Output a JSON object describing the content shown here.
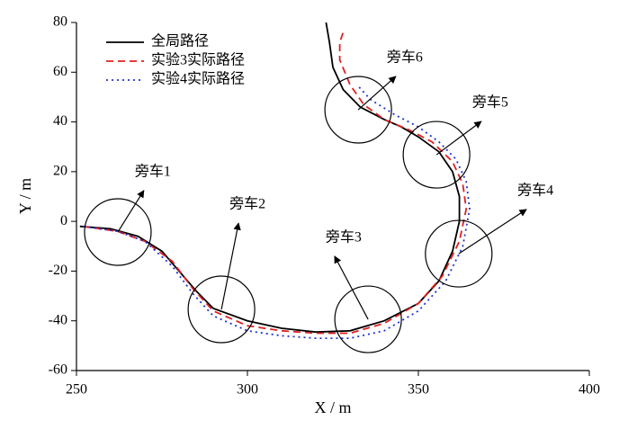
{
  "chart_data": {
    "type": "line",
    "xlabel": "X / m",
    "ylabel": "Y / m",
    "xlim": [
      250,
      400
    ],
    "ylim": [
      -60,
      80
    ],
    "xticks": [
      250,
      300,
      350,
      400
    ],
    "yticks": [
      -60,
      -40,
      -20,
      0,
      20,
      40,
      60,
      80
    ],
    "legend": "upper left",
    "series": [
      {
        "name": "全局路径",
        "color": "#000000",
        "dash": "solid",
        "x": [
          251,
          260,
          268,
          275,
          280,
          285,
          290,
          300,
          310,
          320,
          330,
          340,
          350,
          356,
          360,
          362,
          362,
          360,
          356,
          350,
          345,
          340,
          333,
          328,
          325,
          324,
          323
        ],
        "values": [
          -2,
          -3,
          -6,
          -12,
          -20,
          -28,
          -35,
          -40,
          -43,
          -44.5,
          -44,
          -40,
          -33,
          -24,
          -12,
          0,
          10,
          20,
          28,
          34,
          38,
          41,
          46,
          53,
          62,
          72,
          80
        ]
      },
      {
        "name": "实验3实际路径",
        "color": "#e02020",
        "dash": "dashed",
        "x": [
          252,
          262,
          270,
          278,
          284,
          290,
          300,
          310,
          320,
          330,
          340,
          350,
          357,
          362,
          364,
          363,
          360,
          354,
          347,
          340,
          334,
          330,
          327,
          327,
          328
        ],
        "values": [
          -2,
          -4,
          -8,
          -16,
          -27,
          -36,
          -42,
          -44,
          -45,
          -45,
          -41,
          -33,
          -22,
          -8,
          5,
          15,
          24,
          32,
          37,
          41,
          47,
          55,
          65,
          72,
          76
        ]
      },
      {
        "name": "实验4实际路径",
        "color": "#2030d0",
        "dash": "dotted",
        "x": [
          252,
          262,
          270,
          278,
          284,
          290,
          300,
          310,
          320,
          330,
          340,
          350,
          358,
          363,
          365,
          364,
          361,
          356,
          350,
          343,
          336,
          332
        ],
        "values": [
          -2,
          -4,
          -8,
          -18,
          -29,
          -38,
          -44,
          -46,
          -47,
          -47,
          -44,
          -36,
          -24,
          -10,
          5,
          16,
          25,
          32,
          38,
          43,
          49,
          55
        ]
      }
    ],
    "annotations": [
      {
        "text": "旁车1",
        "x": 262.1,
        "y": -4.3,
        "arrow_x": 269.7,
        "arrow_y": 12.4
      },
      {
        "text": "旁车2",
        "x": 292.4,
        "y": -35.4,
        "arrow_x": 297.4,
        "arrow_y": -0.7
      },
      {
        "text": "旁车3",
        "x": 335.3,
        "y": -39.4,
        "arrow_x": 325.5,
        "arrow_y": -14
      },
      {
        "text": "旁车4",
        "x": 361.8,
        "y": -13,
        "arrow_x": 381.6,
        "arrow_y": 4.8
      },
      {
        "text": "旁车5",
        "x": 355.3,
        "y": 26.8,
        "arrow_x": 368.4,
        "arrow_y": 40.2
      },
      {
        "text": "旁车6",
        "x": 332.4,
        "y": 44.9,
        "arrow_x": 343.4,
        "arrow_y": 58.3
      }
    ]
  }
}
